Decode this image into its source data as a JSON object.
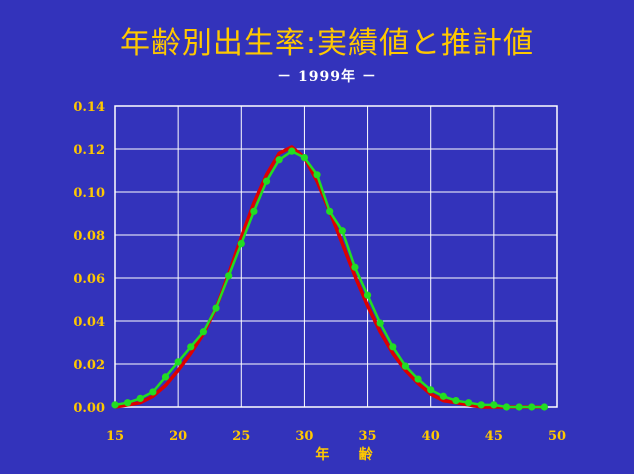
{
  "title": "年齢別出生率:実績値と推計値",
  "subtitle": "－ 1999年 －",
  "colors": {
    "background": "#3333bb",
    "title": "#ffc800",
    "subtitle": "#ffffff",
    "actual_line": "#dd0000",
    "estimate_line": "#22dd22",
    "grid": "#ffffff"
  },
  "chart_data": {
    "type": "line",
    "title": "年齢別出生率:実績値と推計値",
    "subtitle": "－ 1999年 －",
    "xlabel": "年 齢",
    "ylabel": "",
    "xlim": [
      15,
      50
    ],
    "ylim": [
      0,
      0.14
    ],
    "xticks": [
      "15",
      "20",
      "25",
      "30",
      "35",
      "40",
      "45",
      "50"
    ],
    "yticks": [
      "0.00",
      "0.02",
      "0.04",
      "0.06",
      "0.08",
      "0.10",
      "0.12",
      "0.14"
    ],
    "grid": true,
    "series": [
      {
        "color": "#dd0000",
        "markers": false,
        "x": [
          15,
          16,
          17,
          18,
          19,
          20,
          21,
          22,
          23,
          24,
          25,
          26,
          27,
          28,
          29,
          30,
          31,
          32,
          33,
          34,
          35,
          36,
          37,
          38,
          39,
          40,
          41,
          42,
          43,
          44,
          45,
          46,
          47,
          48,
          49
        ],
        "y": [
          0.0,
          0.001,
          0.002,
          0.005,
          0.01,
          0.017,
          0.025,
          0.034,
          0.046,
          0.062,
          0.079,
          0.095,
          0.108,
          0.118,
          0.121,
          0.116,
          0.105,
          0.091,
          0.076,
          0.061,
          0.047,
          0.035,
          0.025,
          0.017,
          0.011,
          0.006,
          0.003,
          0.002,
          0.001,
          0.0,
          0.0,
          0.0,
          0.0,
          0.0,
          0.0
        ]
      },
      {
        "color": "#22dd22",
        "markers": true,
        "x": [
          15,
          16,
          17,
          18,
          19,
          20,
          21,
          22,
          23,
          24,
          25,
          26,
          27,
          28,
          29,
          30,
          31,
          32,
          33,
          34,
          35,
          36,
          37,
          38,
          39,
          40,
          41,
          42,
          43,
          44,
          45,
          46,
          47,
          48,
          49
        ],
        "y": [
          0.001,
          0.002,
          0.004,
          0.007,
          0.014,
          0.021,
          0.028,
          0.035,
          0.046,
          0.061,
          0.076,
          0.091,
          0.105,
          0.115,
          0.119,
          0.116,
          0.108,
          0.091,
          0.082,
          0.065,
          0.052,
          0.039,
          0.028,
          0.019,
          0.013,
          0.008,
          0.005,
          0.003,
          0.002,
          0.001,
          0.001,
          0.0,
          0.0,
          0.0,
          0.0
        ]
      }
    ]
  }
}
